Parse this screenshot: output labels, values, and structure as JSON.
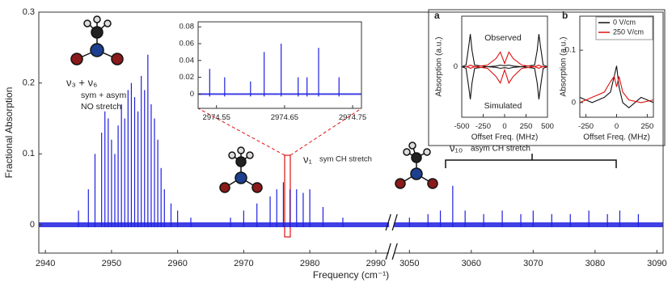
{
  "chart_data": [
    {
      "type": "spectrum",
      "ylabel": "Fractional Absorption",
      "xlabel": "Frequency (cm⁻¹)",
      "xlim": [
        2939,
        3091
      ],
      "xbreak": [
        2992,
        3047.5
      ],
      "ylim": [
        -0.04,
        0.3
      ],
      "xticks": [
        2940,
        2950,
        2960,
        2970,
        2980,
        2990,
        3050,
        3060,
        3070,
        3080,
        3090
      ],
      "yticks": [
        0,
        0.1,
        0.2,
        0.3
      ],
      "annotations": [
        "ν₃ + ν₆",
        "sym + asym",
        "NO stretch",
        "ν₁",
        "sym CH stretch",
        "ν₁₀",
        "asym CH stretch"
      ],
      "x": [
        2945,
        2946.5,
        2947.5,
        2948.5,
        2949,
        2949.5,
        2950,
        2950.5,
        2951,
        2951.5,
        2952,
        2952.5,
        2953,
        2953.5,
        2954,
        2954.5,
        2955,
        2955.5,
        2956,
        2956.5,
        2957,
        2957.5,
        2958,
        2959,
        2960,
        2962,
        2968,
        2970,
        2972,
        2974,
        2975,
        2976,
        2977,
        2978,
        2979,
        2980,
        2982,
        2985,
        3050,
        3053,
        3055,
        3057,
        3059,
        3062,
        3065,
        3068,
        3070,
        3073,
        3076,
        3079,
        3082,
        3084,
        3087
      ],
      "series": [
        {
          "color": "#1f1fe0",
          "values": [
            0.02,
            0.05,
            0.1,
            0.13,
            0.16,
            0.15,
            0.12,
            0.1,
            0.14,
            0.17,
            0.15,
            0.19,
            0.2,
            0.18,
            0.16,
            0.21,
            0.19,
            0.24,
            0.17,
            0.15,
            0.12,
            0.08,
            0.05,
            0.03,
            0.02,
            0.01,
            0.01,
            0.02,
            0.03,
            0.04,
            0.05,
            0.06,
            0.05,
            0.05,
            0.045,
            0.05,
            0.025,
            0.01,
            0.01,
            0.015,
            0.02,
            0.055,
            0.02,
            0.015,
            0.02,
            0.015,
            0.02,
            0.015,
            0.015,
            0.02,
            0.015,
            0.02,
            0.015
          ]
        }
      ]
    },
    {
      "type": "spectrum",
      "xlim": [
        2974.523,
        2974.763
      ],
      "ylim": [
        -0.017,
        0.086
      ],
      "xticks": [
        2974.55,
        2974.65,
        2974.75
      ],
      "yticks": [
        0,
        0.02,
        0.04,
        0.06,
        0.08
      ],
      "x": [
        2974.54,
        2974.562,
        2974.6,
        2974.62,
        2974.645,
        2974.67,
        2974.683,
        2974.7,
        2974.73
      ],
      "series": [
        {
          "color": "#1f1fe0",
          "values": [
            0.03,
            0.02,
            0.015,
            0.05,
            0.06,
            0.02,
            0.02,
            0.055,
            0.02
          ]
        }
      ]
    },
    {
      "type": "line",
      "panel_label": "a",
      "xlabel": "Offset Freq. (MHz)",
      "ylabel": "Absorption (a.u.)",
      "xlim": [
        -500,
        500
      ],
      "ylim": [
        -1.55,
        1.55
      ],
      "xticks": [
        -500,
        -250,
        0,
        250,
        500
      ],
      "yticks": [
        0
      ],
      "annotations": [
        "Observed",
        "Simulated"
      ],
      "x": [
        -500,
        -450,
        -420,
        -400,
        -380,
        -350,
        -200,
        -100,
        -50,
        0,
        50,
        100,
        200,
        350,
        380,
        400,
        420,
        450,
        500
      ],
      "series": [
        {
          "color": "#111111",
          "values": [
            0,
            0.05,
            0.6,
            1.0,
            0.5,
            0.05,
            0,
            0.02,
            0.05,
            0.03,
            0.05,
            0.02,
            0,
            0.05,
            0.5,
            1.0,
            0.6,
            0.05,
            0
          ]
        },
        {
          "color": "#e01010",
          "values": [
            0,
            0,
            0.02,
            0.05,
            0.03,
            0,
            0.05,
            0.25,
            0.45,
            0.1,
            0.45,
            0.25,
            0.05,
            0,
            0.03,
            0.05,
            0.02,
            0,
            0
          ]
        },
        {
          "color": "#111111",
          "values": [
            0,
            -0.05,
            -0.6,
            -1.0,
            -0.5,
            -0.05,
            0,
            -0.02,
            -0.05,
            -0.03,
            -0.05,
            -0.02,
            0,
            -0.05,
            -0.5,
            -1.0,
            -0.6,
            -0.05,
            0
          ]
        },
        {
          "color": "#e01010",
          "values": [
            0,
            0,
            -0.02,
            -0.05,
            -0.03,
            0,
            -0.05,
            -0.3,
            -0.5,
            -0.1,
            -0.5,
            -0.3,
            -0.05,
            0,
            -0.03,
            -0.05,
            -0.02,
            0,
            0
          ]
        }
      ]
    },
    {
      "type": "line",
      "panel_label": "b",
      "xlabel": "Offset Freq. (MHz)",
      "ylabel": "Absorption (a.u.)",
      "xlim": [
        -300,
        300
      ],
      "ylim": [
        -0.028,
        0.165
      ],
      "xticks": [
        -250,
        0,
        250
      ],
      "yticks": [
        0,
        0.1
      ],
      "legend": "upper right",
      "x": [
        -300,
        -200,
        -100,
        -50,
        -20,
        0,
        20,
        50,
        100,
        200,
        300
      ],
      "series": [
        {
          "name": "0 V/cm",
          "color": "#111111",
          "values": [
            0.01,
            0,
            0.01,
            0.02,
            0.05,
            0.07,
            0.03,
            0,
            -0.01,
            0.01,
            0
          ]
        },
        {
          "name": "250 V/cm",
          "color": "#e01010",
          "values": [
            0,
            0.01,
            0.02,
            0.04,
            0.05,
            0.03,
            0.05,
            0.02,
            0.005,
            0,
            0.005
          ]
        }
      ]
    }
  ]
}
